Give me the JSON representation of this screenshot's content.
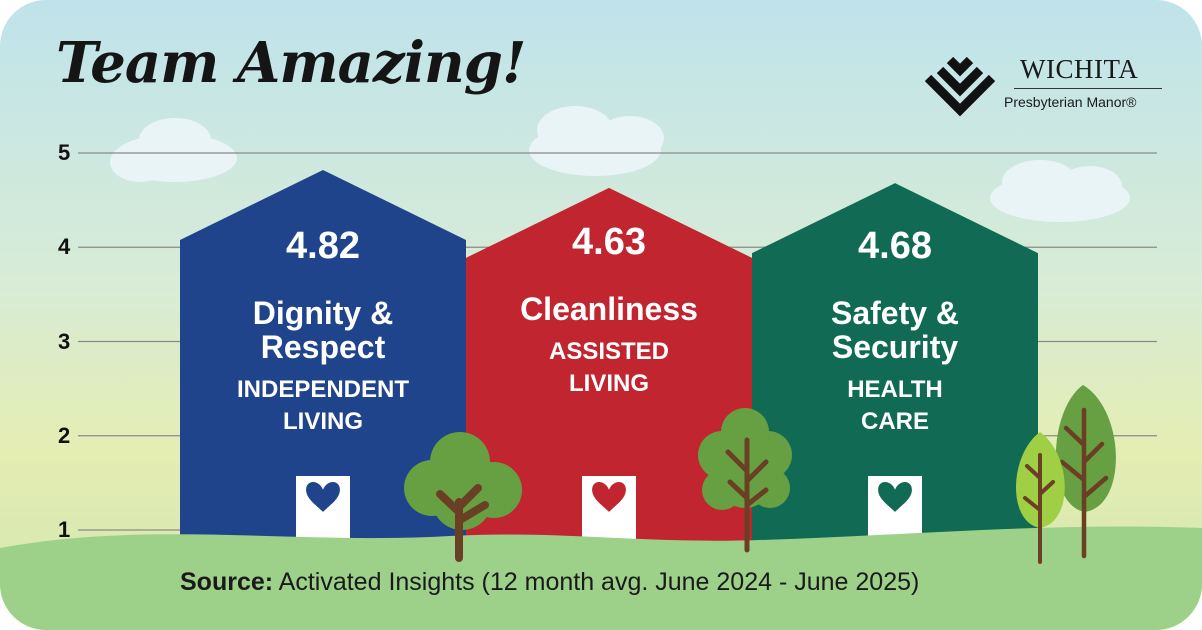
{
  "title": "Team Amazing!",
  "logo": {
    "name": "WICHITA",
    "subtitle": "Presbyterian Manor®"
  },
  "chart_data": {
    "type": "bar",
    "y_ticks": [
      "1",
      "2",
      "3",
      "4",
      "5"
    ],
    "ylim": [
      1,
      5
    ],
    "grid": true,
    "bars": [
      {
        "value": 4.82,
        "value_label": "4.82",
        "metric": "Dignity & Respect",
        "metric_lines": [
          "Dignity &",
          "Respect"
        ],
        "unit_lines": [
          "INDEPENDENT",
          "LIVING"
        ],
        "color": "#1f448c"
      },
      {
        "value": 4.63,
        "value_label": "4.63",
        "metric": "Cleanliness",
        "metric_lines": [
          "Cleanliness"
        ],
        "unit_lines": [
          "ASSISTED",
          "LIVING"
        ],
        "color": "#c1252f"
      },
      {
        "value": 4.68,
        "value_label": "4.68",
        "metric": "Safety & Security",
        "metric_lines": [
          "Safety &",
          "Security"
        ],
        "unit_lines": [
          "HEALTH",
          "CARE"
        ],
        "color": "#116a53"
      }
    ]
  },
  "source": {
    "label": "Source:",
    "text": " Activated Insights (12 month avg. June 2024 - June 2025)"
  }
}
